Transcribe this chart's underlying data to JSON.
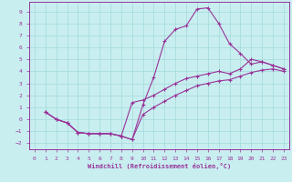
{
  "xlabel": "Windchill (Refroidissement éolien,°C)",
  "bg_color": "#c8eef0",
  "line_color": "#993399",
  "grid_color": "#aadddd",
  "xlim": [
    -0.5,
    23.5
  ],
  "ylim": [
    -2.5,
    9.8
  ],
  "xticks": [
    0,
    1,
    2,
    3,
    4,
    5,
    6,
    7,
    8,
    9,
    10,
    11,
    12,
    13,
    14,
    15,
    16,
    17,
    18,
    19,
    20,
    21,
    22,
    23
  ],
  "yticks": [
    -2,
    -1,
    0,
    1,
    2,
    3,
    4,
    5,
    6,
    7,
    8,
    9
  ],
  "line1_x": [
    1,
    2,
    3,
    4,
    5,
    6,
    7,
    8,
    9,
    10,
    11,
    12,
    13,
    14,
    15,
    16,
    17,
    18,
    19,
    20,
    21,
    22,
    23
  ],
  "line1_y": [
    0.6,
    0.0,
    -0.3,
    -1.1,
    -1.2,
    -1.2,
    -1.2,
    -1.4,
    -1.7,
    1.2,
    3.5,
    6.5,
    7.5,
    7.8,
    9.2,
    9.3,
    8.0,
    6.3,
    5.5,
    4.6,
    4.8,
    4.5,
    4.2
  ],
  "line2_x": [
    1,
    2,
    3,
    4,
    5,
    6,
    7,
    8,
    9,
    10,
    11,
    12,
    13,
    14,
    15,
    16,
    17,
    18,
    19,
    20,
    21,
    22,
    23
  ],
  "line2_y": [
    0.6,
    0.0,
    -0.3,
    -1.1,
    -1.2,
    -1.2,
    -1.2,
    -1.4,
    1.4,
    1.6,
    2.0,
    2.5,
    3.0,
    3.4,
    3.6,
    3.8,
    4.0,
    3.8,
    4.2,
    5.0,
    4.8,
    4.5,
    4.2
  ],
  "line3_x": [
    1,
    2,
    3,
    4,
    5,
    6,
    7,
    8,
    9,
    10,
    11,
    12,
    13,
    14,
    15,
    16,
    17,
    18,
    19,
    20,
    21,
    22,
    23
  ],
  "line3_y": [
    0.6,
    0.0,
    -0.3,
    -1.1,
    -1.2,
    -1.2,
    -1.2,
    -1.4,
    -1.7,
    0.4,
    1.0,
    1.5,
    2.0,
    2.4,
    2.8,
    3.0,
    3.2,
    3.3,
    3.6,
    3.9,
    4.1,
    4.2,
    4.0
  ]
}
